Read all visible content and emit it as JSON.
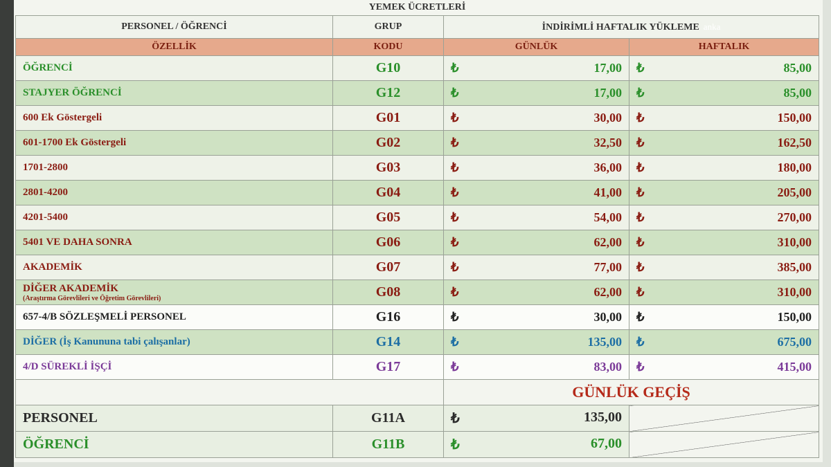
{
  "title": "YEMEK ÜCRETLERİ",
  "header": {
    "col1": "PERSONEL / ÖĞRENCİ",
    "col2": "GRUP",
    "col3": "İNDİRİMLİ HAFTALIK YÜKLEME",
    "watermark": "anka",
    "sub1": "ÖZELLİK",
    "sub2": "KODU",
    "sub3": "GÜNLÜK",
    "sub4": "HAFTALIK"
  },
  "currency": "₺",
  "rows": [
    {
      "label": "ÖĞRENCİ",
      "code": "G10",
      "daily": "17,00",
      "weekly": "85,00",
      "color": "#2a8f2a"
    },
    {
      "label": "STAJYER ÖĞRENCİ",
      "code": "G12",
      "daily": "17,00",
      "weekly": "85,00",
      "color": "#2a8f2a"
    },
    {
      "label": "600 Ek Göstergeli",
      "code": "G01",
      "daily": "30,00",
      "weekly": "150,00",
      "color": "#8a1c12"
    },
    {
      "label": "601-1700  Ek Göstergeli",
      "code": "G02",
      "daily": "32,50",
      "weekly": "162,50",
      "color": "#8a1c12"
    },
    {
      "label": "1701-2800",
      "code": "G03",
      "daily": "36,00",
      "weekly": "180,00",
      "color": "#8a1c12"
    },
    {
      "label": "2801-4200",
      "code": "G04",
      "daily": "41,00",
      "weekly": "205,00",
      "color": "#8a1c12"
    },
    {
      "label": "4201-5400",
      "code": "G05",
      "daily": "54,00",
      "weekly": "270,00",
      "color": "#8a1c12"
    },
    {
      "label": "5401 VE DAHA SONRA",
      "code": "G06",
      "daily": "62,00",
      "weekly": "310,00",
      "color": "#8a1c12"
    },
    {
      "label": "AKADEMİK",
      "code": "G07",
      "daily": "77,00",
      "weekly": "385,00",
      "color": "#8a1c12"
    },
    {
      "label": "DİĞER AKADEMİK",
      "note": "(Araştırma Görevlileri ve Öğretim Görevlileri)",
      "code": "G08",
      "daily": "62,00",
      "weekly": "310,00",
      "color": "#8a1c12"
    },
    {
      "label": "657-4/B SÖZLEŞMELİ PERSONEL",
      "code": "G16",
      "daily": "30,00",
      "weekly": "150,00",
      "color": "#222222"
    },
    {
      "label": "DİĞER (İş Kanununa tabi çalışanlar)",
      "code": "G14",
      "daily": "135,00",
      "weekly": "675,00",
      "color": "#1c6ea4"
    },
    {
      "label": "4/D SÜREKLİ İŞÇİ",
      "code": "G17",
      "daily": "83,00",
      "weekly": "415,00",
      "color": "#7b3a98"
    }
  ],
  "daily_pass": {
    "title": "GÜNLÜK GEÇİŞ",
    "rows": [
      {
        "label": "PERSONEL",
        "code": "G11A",
        "daily": "135,00",
        "color": "#2a2a2a"
      },
      {
        "label": "ÖĞRENCİ",
        "code": "G11B",
        "daily": "67,00",
        "color": "#2a8f2a"
      }
    ]
  }
}
